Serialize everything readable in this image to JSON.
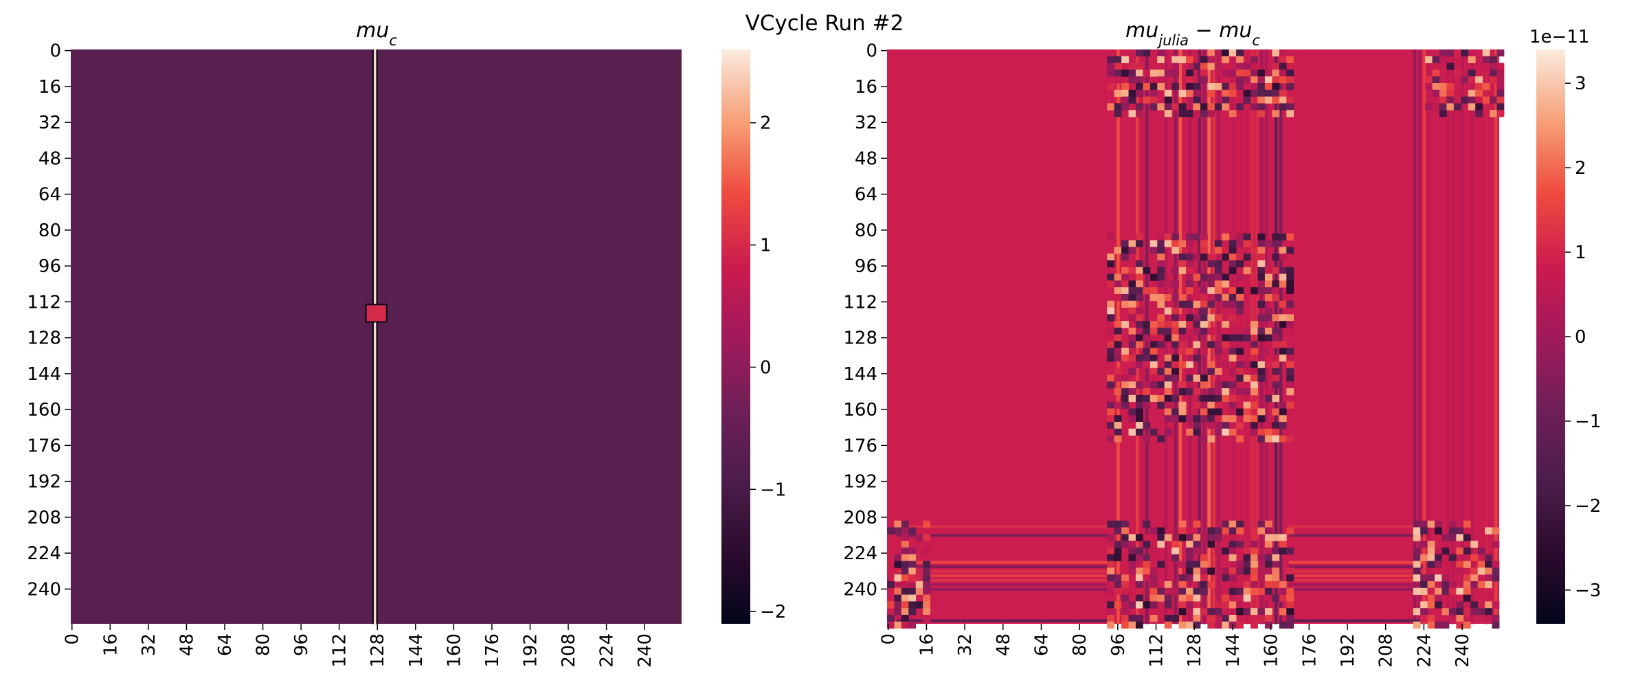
{
  "figure": {
    "suptitle": "VCycle Run #2",
    "background": "#ffffff"
  },
  "chart_data": [
    {
      "type": "heatmap",
      "title": "mu_c",
      "title_base": "mu",
      "title_sub": "c",
      "grid_size": [
        256,
        256
      ],
      "xticks": [
        0,
        16,
        32,
        48,
        64,
        80,
        96,
        112,
        128,
        144,
        160,
        176,
        192,
        208,
        224,
        240
      ],
      "yticks": [
        0,
        16,
        32,
        48,
        64,
        80,
        96,
        112,
        128,
        144,
        160,
        176,
        192,
        208,
        224,
        240
      ],
      "x_tick_rotation": "vertical",
      "colormap": "rocket",
      "colorbar": {
        "vmin": -2.1,
        "vmax": 2.6,
        "ticks": [
          -2,
          -1,
          0,
          1,
          2
        ],
        "labels": [
          "−2",
          "−1",
          "0",
          "1",
          "2"
        ],
        "offset_text": ""
      },
      "fields": [
        {
          "kind": "background",
          "value": -1.0
        },
        {
          "kind": "vertical-line",
          "x": 127,
          "value": 2.5,
          "edge_value": -2.0
        },
        {
          "kind": "square",
          "x_range": [
            124,
            132
          ],
          "y_range": [
            114,
            121
          ],
          "value": 1.0,
          "edge_value": -2.0
        }
      ]
    },
    {
      "type": "heatmap",
      "title": "mu_julia - mu_c",
      "title_base": "mu",
      "title_sub": "julia",
      "title_mid": " − ",
      "title_base2": "mu",
      "title_sub2": "c",
      "grid_size": [
        256,
        256
      ],
      "xticks": [
        0,
        16,
        32,
        48,
        64,
        80,
        96,
        112,
        128,
        144,
        160,
        176,
        192,
        208,
        224,
        240
      ],
      "yticks": [
        0,
        16,
        32,
        48,
        64,
        80,
        96,
        112,
        128,
        144,
        160,
        176,
        192,
        208,
        224,
        240
      ],
      "x_tick_rotation": "vertical",
      "colormap": "rocket",
      "colorbar": {
        "vmin": -3.4,
        "vmax": 3.4,
        "ticks": [
          -3,
          -2,
          -1,
          0,
          1,
          2,
          3
        ],
        "labels": [
          "−3",
          "−2",
          "−1",
          "0",
          "1",
          "2",
          "3"
        ],
        "offset_text": "1e−11"
      },
      "fields": [
        {
          "kind": "background",
          "value": 0.0
        },
        {
          "kind": "noise-columns",
          "x_ranges": [
            [
              0,
              4
            ],
            [
              90,
              168
            ],
            [
              220,
              256
            ]
          ],
          "y_range": [
            0,
            256
          ]
        },
        {
          "kind": "noise-rows",
          "x_ranges": [
            [
              0,
              256
            ]
          ],
          "y_range": [
            210,
            256
          ]
        },
        {
          "kind": "noise-cluster",
          "x_range": [
            92,
            168
          ],
          "y_range": [
            82,
            175
          ]
        }
      ]
    }
  ]
}
